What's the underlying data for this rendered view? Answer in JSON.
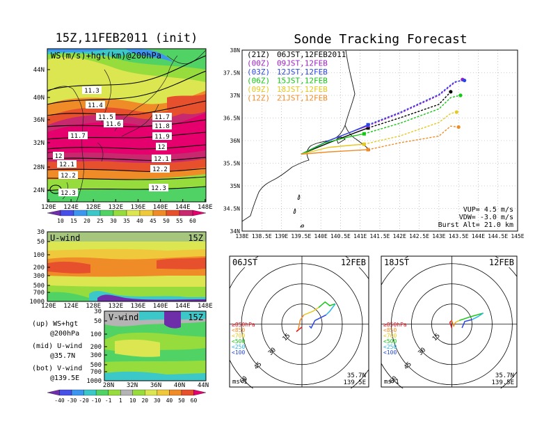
{
  "left_title": "15Z,11FEB2011 (init)",
  "right_title": "Sonde Tracking Forecast",
  "map_panel": {
    "label": "WS(m/s)+hgt(km)@200hPa",
    "lat_ticks": [
      "44N",
      "40N",
      "36N",
      "32N",
      "28N",
      "24N"
    ],
    "lon_ticks": [
      "120E",
      "124E",
      "128E",
      "132E",
      "136E",
      "140E",
      "144E",
      "148E"
    ],
    "contour_labels": [
      "11.3",
      "11.4",
      "11.5",
      "11.6",
      "11.7",
      "11.7",
      "11.8",
      "11.9",
      "12",
      "12",
      "12.1",
      "12.1",
      "12.2",
      "12.2",
      "12.3",
      "12.3"
    ],
    "colorbar_labels": [
      "10",
      "15",
      "20",
      "25",
      "30",
      "35",
      "40",
      "45",
      "50",
      "55",
      "60"
    ],
    "colorbar_colors": [
      "#6e2eaa",
      "#4650e6",
      "#3c96f0",
      "#3cc8c8",
      "#50d264",
      "#96dc3c",
      "#dce650",
      "#f0c83c",
      "#f08c28",
      "#e6502d",
      "#c8286e",
      "#e6006e"
    ]
  },
  "u_panel": {
    "title": "U-wind",
    "time": "15Z",
    "p_ticks": [
      "30",
      "50",
      "100",
      "200",
      "300",
      "500",
      "700",
      "1000"
    ],
    "lon_ticks": [
      "120E",
      "124E",
      "128E",
      "132E",
      "136E",
      "140E",
      "144E",
      "148E"
    ]
  },
  "v_panel": {
    "title": "V-wind",
    "time": "15Z",
    "p_ticks": [
      "30",
      "50",
      "100",
      "200",
      "300",
      "500",
      "700",
      "1000"
    ],
    "lat_ticks": [
      "28N",
      "32N",
      "36N",
      "40N",
      "44N"
    ],
    "colorbar_labels": [
      "-40",
      "-30",
      "-20",
      "-10",
      "-1",
      "1",
      "10",
      "20",
      "30",
      "40",
      "50",
      "60"
    ],
    "colorbar_colors": [
      "#6e2eaa",
      "#4650e6",
      "#3c96f0",
      "#3cc8c8",
      "#50d264",
      "#96dc3c",
      "#b4b4b4",
      "#96dc3c",
      "#dce650",
      "#f0c83c",
      "#f08c28",
      "#e6502d",
      "#e6006e"
    ]
  },
  "notes": [
    {
      "l1": "(up) WS+hgt",
      "l2": "@200hPa"
    },
    {
      "l1": "(mid) U-wind",
      "l2": "@35.7N"
    },
    {
      "l1": "(bot) V-wind",
      "l2": "@139.5E"
    }
  ],
  "chart_data": {
    "type": "line",
    "title": "Sonde Tracking Forecast",
    "lat_ticks": [
      "38N",
      "37.5N",
      "37N",
      "36.5N",
      "36N",
      "35.5N",
      "35N",
      "34.5N",
      "34N"
    ],
    "lon_ticks": [
      "138E",
      "138.5E",
      "139E",
      "139.5E",
      "140E",
      "140.5E",
      "141E",
      "141.5E",
      "142E",
      "142.5E",
      "143E",
      "143.5E",
      "144E",
      "144.5E",
      "145E"
    ],
    "xlim": [
      138,
      145
    ],
    "ylim": [
      34,
      38
    ],
    "legend": [
      {
        "code": "(21Z)",
        "time": "06JST,12FEB2011",
        "color": "#000000"
      },
      {
        "code": "(00Z)",
        "time": "09JST,12FEB",
        "color": "#a020c8"
      },
      {
        "code": "(03Z)",
        "time": "12JST,12FEB",
        "color": "#2846e6"
      },
      {
        "code": "(06Z)",
        "time": "15JST,12FEB",
        "color": "#14c814"
      },
      {
        "code": "(09Z)",
        "time": "18JST,12FEB",
        "color": "#e6c81e"
      },
      {
        "code": "(12Z)",
        "time": "21JST,12FEB",
        "color": "#f08c28"
      }
    ],
    "series": [
      {
        "color": "#000000",
        "points": [
          [
            139.5,
            35.7
          ],
          [
            140.2,
            35.95
          ],
          [
            140.8,
            36.15
          ],
          [
            141.2,
            36.28
          ],
          [
            142,
            36.5
          ],
          [
            143,
            36.8
          ],
          [
            143.3,
            37.08
          ]
        ]
      },
      {
        "color": "#a020c8",
        "points": [
          [
            139.5,
            35.7
          ],
          [
            140.2,
            36.0
          ],
          [
            140.8,
            36.2
          ],
          [
            141.2,
            36.33
          ],
          [
            142,
            36.6
          ],
          [
            143,
            37.0
          ],
          [
            143.4,
            37.28
          ],
          [
            143.6,
            37.35
          ]
        ]
      },
      {
        "color": "#2846e6",
        "points": [
          [
            139.5,
            35.7
          ],
          [
            140.2,
            36.0
          ],
          [
            140.8,
            36.2
          ],
          [
            141.2,
            36.35
          ],
          [
            142,
            36.62
          ],
          [
            143,
            37.02
          ],
          [
            143.4,
            37.3
          ],
          [
            143.65,
            37.33
          ]
        ]
      },
      {
        "color": "#14c814",
        "points": [
          [
            139.5,
            35.7
          ],
          [
            140.1,
            35.95
          ],
          [
            140.7,
            36.08
          ],
          [
            141.1,
            36.15
          ],
          [
            142,
            36.38
          ],
          [
            143,
            36.7
          ],
          [
            143.3,
            36.95
          ],
          [
            143.55,
            37.0
          ]
        ]
      },
      {
        "color": "#e6c81e",
        "points": [
          [
            139.5,
            35.7
          ],
          [
            140.2,
            35.85
          ],
          [
            140.8,
            35.9
          ],
          [
            141.1,
            35.92
          ],
          [
            142,
            36.1
          ],
          [
            143,
            36.4
          ],
          [
            143.3,
            36.6
          ],
          [
            143.45,
            36.63
          ]
        ]
      },
      {
        "color": "#f08c28",
        "points": [
          [
            139.5,
            35.7
          ],
          [
            140.2,
            35.75
          ],
          [
            140.8,
            35.78
          ],
          [
            141.2,
            35.8
          ],
          [
            142,
            35.95
          ],
          [
            143,
            36.1
          ],
          [
            143.3,
            36.32
          ],
          [
            143.5,
            36.3
          ]
        ]
      }
    ],
    "params": {
      "vup": "VUP= 4.5 m/s",
      "vdw": "VDW= -3.0 m/s",
      "burst": "Burst Alt= 21.0 km"
    }
  },
  "hodographs": [
    {
      "time": "06JST",
      "date": "12FEB",
      "lat": "35.7N",
      "lon": "139.5E",
      "unit": "ms-1",
      "rings": [
        "15",
        "30",
        "45",
        "60"
      ],
      "legend": [
        {
          "t": "≥850hPa",
          "c": "#e6141e"
        },
        {
          "t": "<850",
          "c": "#f08c28"
        },
        {
          "t": "<700",
          "c": "#e6c81e"
        },
        {
          "t": "<500",
          "c": "#14c814"
        },
        {
          "t": "<250",
          "c": "#28b4e6"
        },
        {
          "t": "<100",
          "c": "#2846e6"
        }
      ],
      "segments": [
        {
          "c": "#e6141e",
          "pts": [
            [
              0,
              -3
            ],
            [
              -6,
              -8
            ],
            [
              -4,
              -6
            ]
          ]
        },
        {
          "c": "#f08c28",
          "pts": [
            [
              -4,
              -6
            ],
            [
              -2,
              4
            ],
            [
              2,
              10
            ]
          ]
        },
        {
          "c": "#e6c81e",
          "pts": [
            [
              2,
              10
            ],
            [
              12,
              14
            ],
            [
              18,
              18
            ]
          ]
        },
        {
          "c": "#14c814",
          "pts": [
            [
              18,
              18
            ],
            [
              25,
              24
            ],
            [
              30,
              20
            ],
            [
              36,
              22
            ]
          ]
        },
        {
          "c": "#28b4e6",
          "pts": [
            [
              36,
              22
            ],
            [
              30,
              14
            ],
            [
              26,
              10
            ]
          ]
        },
        {
          "c": "#2846e6",
          "pts": [
            [
              26,
              10
            ],
            [
              14,
              4
            ],
            [
              10,
              -4
            ],
            [
              8,
              -2
            ]
          ]
        }
      ]
    },
    {
      "time": "18JST",
      "date": "12FEB",
      "lat": "35.7N",
      "lon": "139.5E",
      "unit": "ms-1",
      "rings": [
        "15",
        "30",
        "45",
        "60"
      ],
      "legend": [
        {
          "t": "≥850hPa",
          "c": "#e6141e"
        },
        {
          "t": "<850",
          "c": "#f08c28"
        },
        {
          "t": "<700",
          "c": "#e6c81e"
        },
        {
          "t": "<500",
          "c": "#14c814"
        },
        {
          "t": "<250",
          "c": "#28b4e6"
        },
        {
          "t": "<100",
          "c": "#2846e6"
        }
      ],
      "segments": [
        {
          "c": "#e6141e",
          "pts": [
            [
              0,
              -4
            ],
            [
              -2,
              2
            ],
            [
              0,
              4
            ]
          ]
        },
        {
          "c": "#f08c28",
          "pts": [
            [
              0,
              4
            ],
            [
              2,
              -2
            ],
            [
              4,
              2
            ]
          ]
        },
        {
          "c": "#e6c81e",
          "pts": [
            [
              4,
              2
            ],
            [
              8,
              4
            ]
          ]
        },
        {
          "c": "#14c814",
          "pts": [
            [
              8,
              4
            ],
            [
              20,
              8
            ],
            [
              34,
              12
            ]
          ]
        },
        {
          "c": "#28b4e6",
          "pts": [
            [
              34,
              12
            ],
            [
              28,
              8
            ],
            [
              22,
              5
            ]
          ]
        },
        {
          "c": "#2846e6",
          "pts": [
            [
              22,
              5
            ],
            [
              14,
              3
            ],
            [
              11,
              -4
            ]
          ]
        }
      ]
    }
  ]
}
